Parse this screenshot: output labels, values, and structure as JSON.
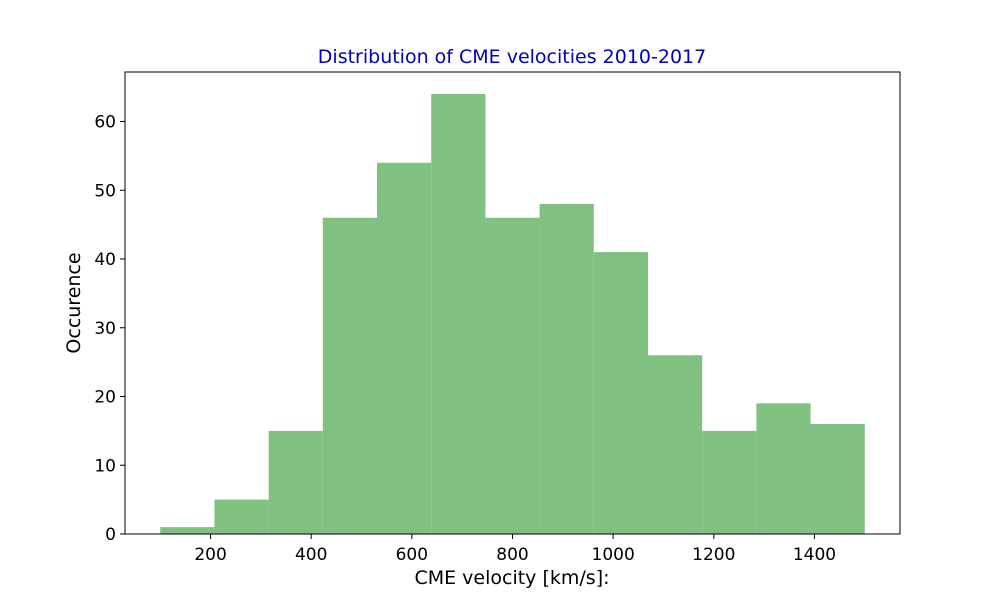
{
  "chart_data": {
    "type": "bar",
    "title": "Distribution of CME velocities 2010-2017",
    "xlabel": "CME velocity [km/s]:",
    "ylabel": "Occurence",
    "bin_edges": [
      100,
      207.7,
      315.4,
      423.1,
      530.8,
      638.5,
      746.2,
      853.8,
      961.5,
      1069.2,
      1176.9,
      1284.6,
      1392.3,
      1500
    ],
    "values": [
      1,
      5,
      15,
      46,
      54,
      64,
      46,
      48,
      41,
      26,
      15,
      19,
      16
    ],
    "xlim": [
      30,
      1570
    ],
    "ylim": [
      0,
      67.2
    ],
    "xticks": [
      200,
      400,
      600,
      800,
      1000,
      1200,
      1400
    ],
    "yticks": [
      0,
      10,
      20,
      30,
      40,
      50,
      60
    ],
    "grid": false,
    "colors": {
      "bar": "#80c080",
      "title": "#0000c0",
      "axis": "#000000"
    }
  }
}
